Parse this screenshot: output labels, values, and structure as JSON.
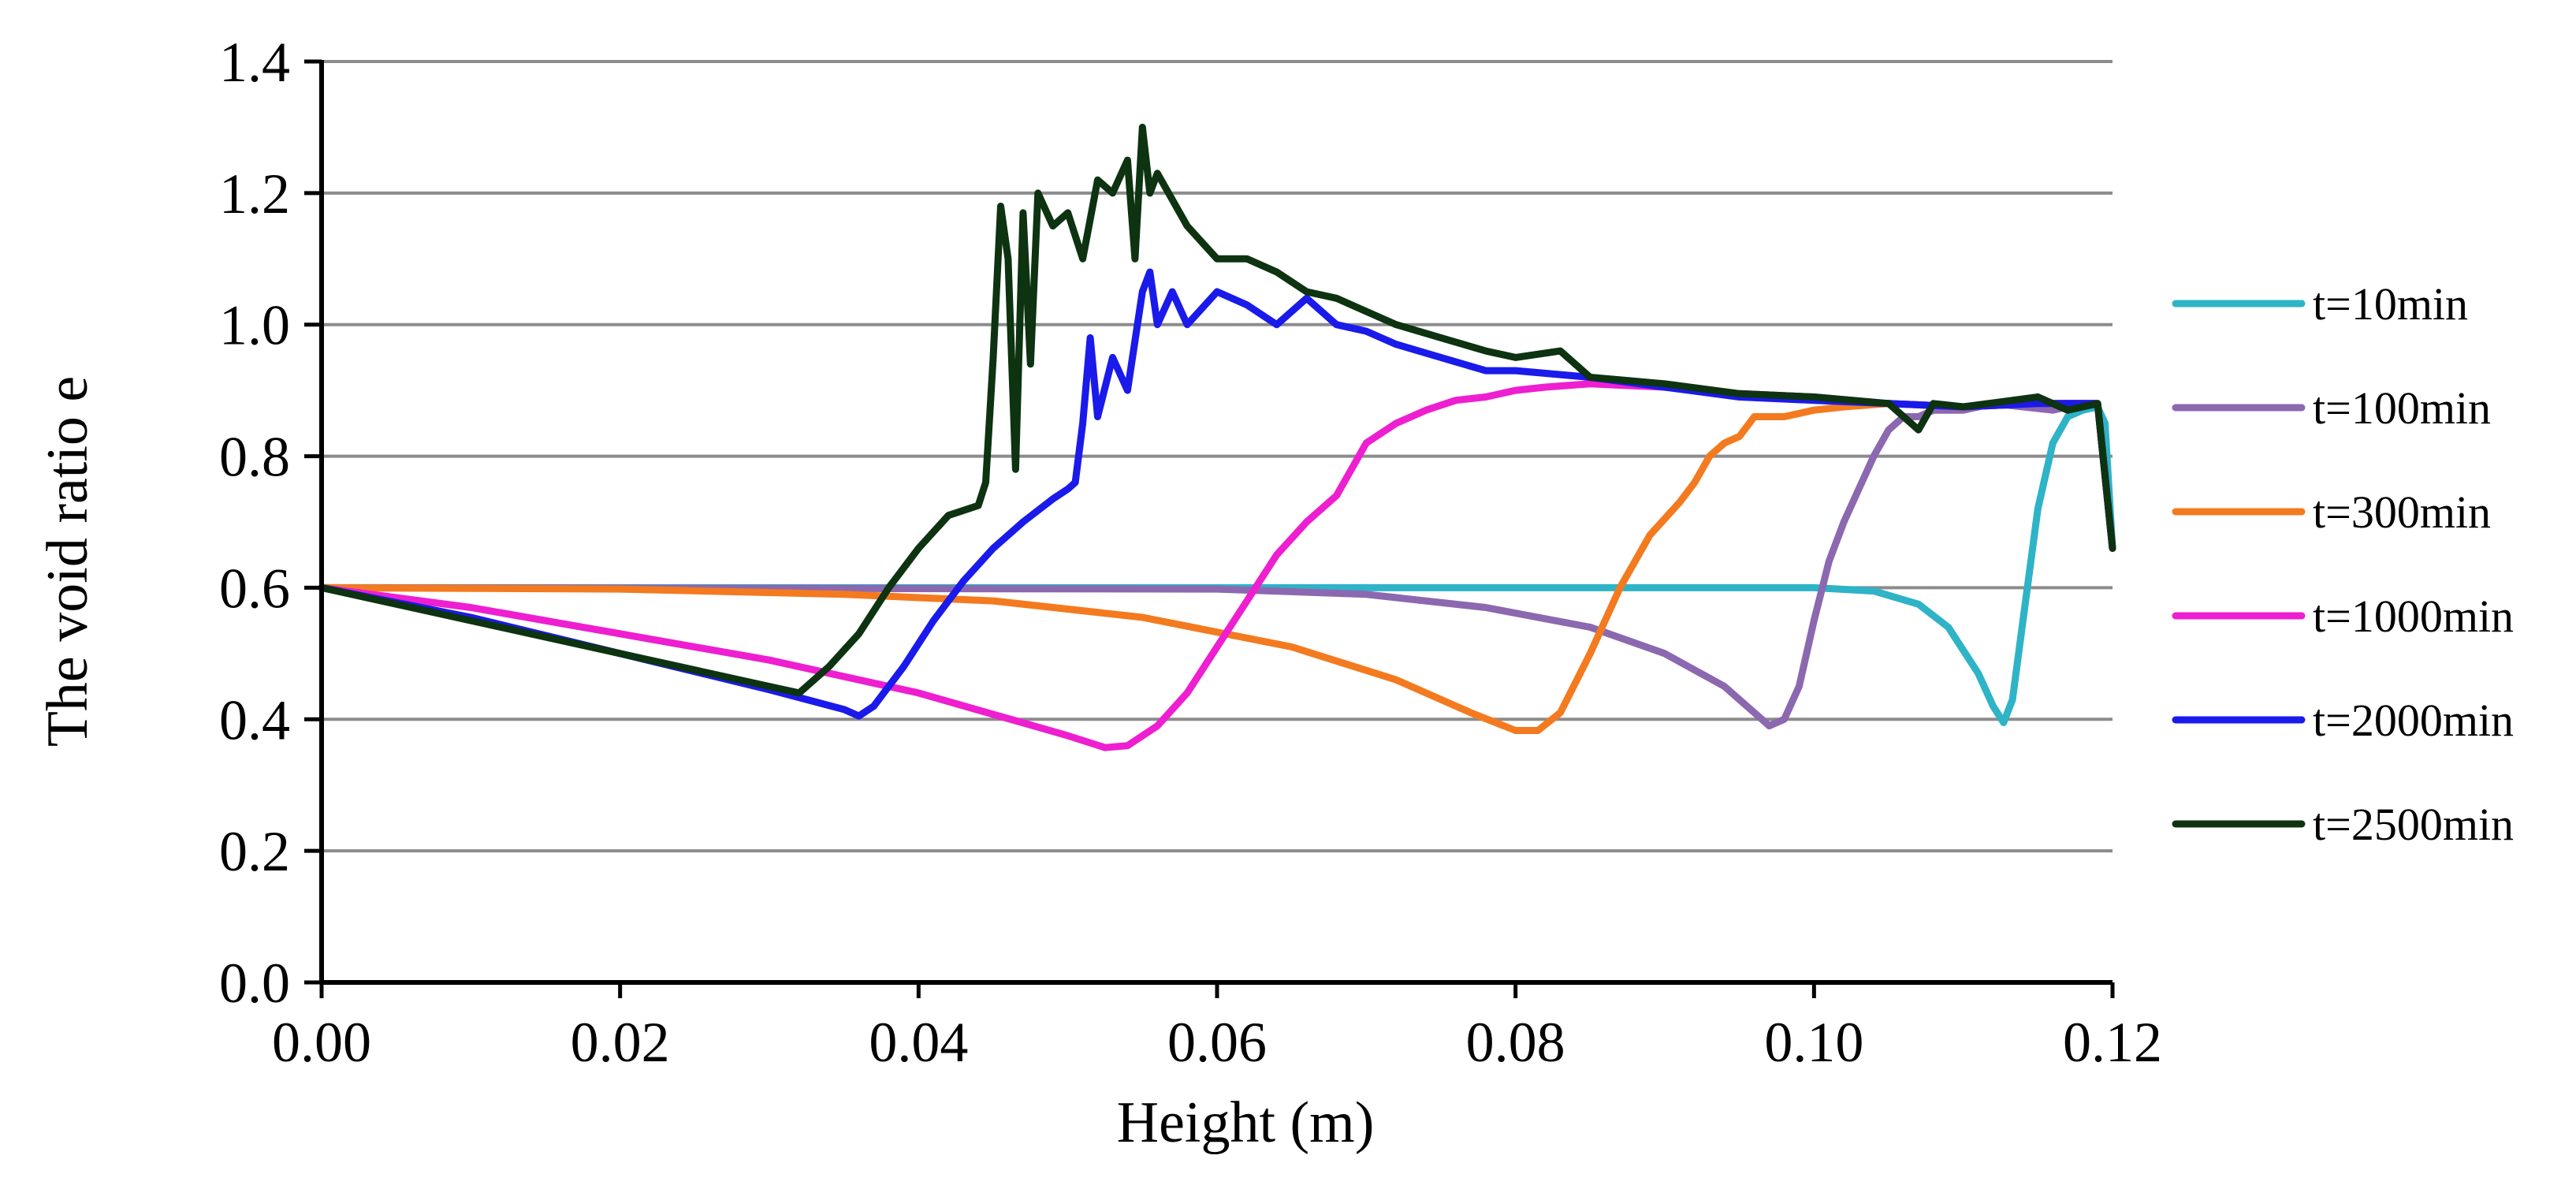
{
  "chart_data": {
    "type": "line",
    "title": "",
    "xlabel": "Height (m)",
    "ylabel": "The void ratio e",
    "xlim": [
      0,
      0.12
    ],
    "ylim": [
      0,
      1.4
    ],
    "x_ticks": [
      "0.00",
      "0.02",
      "0.04",
      "0.06",
      "0.08",
      "0.10",
      "0.12"
    ],
    "y_ticks": [
      "0.0",
      "0.2",
      "0.4",
      "0.6",
      "0.8",
      "1.0",
      "1.2",
      "1.4"
    ],
    "grid": "horizontal",
    "legend_position": "right",
    "series": [
      {
        "name": "t=10min",
        "color": "#2eb3c7",
        "points": [
          [
            0,
            0.6
          ],
          [
            0.09,
            0.6
          ],
          [
            0.1,
            0.6
          ],
          [
            0.104,
            0.595
          ],
          [
            0.107,
            0.575
          ],
          [
            0.109,
            0.54
          ],
          [
            0.111,
            0.47
          ],
          [
            0.112,
            0.42
          ],
          [
            0.1127,
            0.395
          ],
          [
            0.1133,
            0.43
          ],
          [
            0.114,
            0.55
          ],
          [
            0.115,
            0.72
          ],
          [
            0.116,
            0.82
          ],
          [
            0.117,
            0.86
          ],
          [
            0.118,
            0.87
          ],
          [
            0.119,
            0.875
          ],
          [
            0.1195,
            0.85
          ],
          [
            0.12,
            0.66
          ]
        ]
      },
      {
        "name": "t=100min",
        "color": "#8c68b0",
        "points": [
          [
            0,
            0.6
          ],
          [
            0.06,
            0.598
          ],
          [
            0.07,
            0.59
          ],
          [
            0.078,
            0.57
          ],
          [
            0.085,
            0.54
          ],
          [
            0.09,
            0.5
          ],
          [
            0.094,
            0.45
          ],
          [
            0.0965,
            0.4
          ],
          [
            0.097,
            0.39
          ],
          [
            0.098,
            0.4
          ],
          [
            0.099,
            0.45
          ],
          [
            0.1,
            0.55
          ],
          [
            0.101,
            0.64
          ],
          [
            0.102,
            0.7
          ],
          [
            0.103,
            0.75
          ],
          [
            0.104,
            0.8
          ],
          [
            0.105,
            0.84
          ],
          [
            0.106,
            0.86
          ],
          [
            0.107,
            0.86
          ],
          [
            0.108,
            0.87
          ],
          [
            0.11,
            0.87
          ],
          [
            0.112,
            0.88
          ],
          [
            0.114,
            0.875
          ],
          [
            0.116,
            0.87
          ],
          [
            0.118,
            0.88
          ],
          [
            0.119,
            0.88
          ],
          [
            0.12,
            0.66
          ]
        ]
      },
      {
        "name": "t=300min",
        "color": "#f47a1f",
        "points": [
          [
            0,
            0.6
          ],
          [
            0.02,
            0.598
          ],
          [
            0.035,
            0.59
          ],
          [
            0.045,
            0.58
          ],
          [
            0.055,
            0.555
          ],
          [
            0.065,
            0.51
          ],
          [
            0.072,
            0.46
          ],
          [
            0.077,
            0.41
          ],
          [
            0.08,
            0.383
          ],
          [
            0.0815,
            0.383
          ],
          [
            0.083,
            0.41
          ],
          [
            0.085,
            0.5
          ],
          [
            0.087,
            0.6
          ],
          [
            0.089,
            0.68
          ],
          [
            0.091,
            0.73
          ],
          [
            0.092,
            0.76
          ],
          [
            0.093,
            0.8
          ],
          [
            0.094,
            0.82
          ],
          [
            0.095,
            0.83
          ],
          [
            0.096,
            0.86
          ],
          [
            0.098,
            0.86
          ],
          [
            0.1,
            0.87
          ],
          [
            0.102,
            0.875
          ],
          [
            0.105,
            0.88
          ],
          [
            0.11,
            0.875
          ],
          [
            0.115,
            0.88
          ],
          [
            0.119,
            0.88
          ],
          [
            0.12,
            0.66
          ]
        ]
      },
      {
        "name": "t=1000min",
        "color": "#ee1fd0",
        "points": [
          [
            0,
            0.6
          ],
          [
            0.01,
            0.57
          ],
          [
            0.02,
            0.53
          ],
          [
            0.03,
            0.49
          ],
          [
            0.04,
            0.44
          ],
          [
            0.05,
            0.375
          ],
          [
            0.0525,
            0.357
          ],
          [
            0.054,
            0.36
          ],
          [
            0.056,
            0.39
          ],
          [
            0.058,
            0.44
          ],
          [
            0.06,
            0.51
          ],
          [
            0.062,
            0.58
          ],
          [
            0.064,
            0.65
          ],
          [
            0.066,
            0.7
          ],
          [
            0.068,
            0.74
          ],
          [
            0.069,
            0.78
          ],
          [
            0.07,
            0.82
          ],
          [
            0.072,
            0.85
          ],
          [
            0.074,
            0.87
          ],
          [
            0.076,
            0.885
          ],
          [
            0.078,
            0.89
          ],
          [
            0.08,
            0.9
          ],
          [
            0.082,
            0.905
          ],
          [
            0.085,
            0.91
          ],
          [
            0.09,
            0.905
          ],
          [
            0.095,
            0.895
          ],
          [
            0.1,
            0.89
          ],
          [
            0.105,
            0.88
          ],
          [
            0.11,
            0.875
          ],
          [
            0.115,
            0.88
          ],
          [
            0.119,
            0.88
          ],
          [
            0.12,
            0.66
          ]
        ]
      },
      {
        "name": "t=2000min",
        "color": "#1a1aeb",
        "points": [
          [
            0,
            0.6
          ],
          [
            0.01,
            0.555
          ],
          [
            0.02,
            0.5
          ],
          [
            0.03,
            0.445
          ],
          [
            0.035,
            0.415
          ],
          [
            0.036,
            0.405
          ],
          [
            0.037,
            0.42
          ],
          [
            0.039,
            0.48
          ],
          [
            0.041,
            0.55
          ],
          [
            0.043,
            0.61
          ],
          [
            0.045,
            0.66
          ],
          [
            0.047,
            0.7
          ],
          [
            0.049,
            0.735
          ],
          [
            0.05,
            0.75
          ],
          [
            0.0505,
            0.76
          ],
          [
            0.051,
            0.85
          ],
          [
            0.0515,
            0.98
          ],
          [
            0.052,
            0.86
          ],
          [
            0.053,
            0.95
          ],
          [
            0.054,
            0.9
          ],
          [
            0.055,
            1.05
          ],
          [
            0.0555,
            1.08
          ],
          [
            0.056,
            1.0
          ],
          [
            0.057,
            1.05
          ],
          [
            0.058,
            1.0
          ],
          [
            0.06,
            1.05
          ],
          [
            0.062,
            1.03
          ],
          [
            0.064,
            1.0
          ],
          [
            0.066,
            1.04
          ],
          [
            0.068,
            1.0
          ],
          [
            0.07,
            0.99
          ],
          [
            0.072,
            0.97
          ],
          [
            0.075,
            0.95
          ],
          [
            0.078,
            0.93
          ],
          [
            0.08,
            0.93
          ],
          [
            0.085,
            0.92
          ],
          [
            0.09,
            0.905
          ],
          [
            0.095,
            0.89
          ],
          [
            0.1,
            0.885
          ],
          [
            0.105,
            0.88
          ],
          [
            0.11,
            0.875
          ],
          [
            0.115,
            0.88
          ],
          [
            0.119,
            0.88
          ],
          [
            0.12,
            0.66
          ]
        ]
      },
      {
        "name": "t=2500min",
        "color": "#0d3311",
        "points": [
          [
            0,
            0.6
          ],
          [
            0.01,
            0.55
          ],
          [
            0.02,
            0.5
          ],
          [
            0.03,
            0.45
          ],
          [
            0.032,
            0.44
          ],
          [
            0.034,
            0.48
          ],
          [
            0.036,
            0.53
          ],
          [
            0.038,
            0.6
          ],
          [
            0.04,
            0.66
          ],
          [
            0.042,
            0.71
          ],
          [
            0.044,
            0.725
          ],
          [
            0.0445,
            0.76
          ],
          [
            0.045,
            0.95
          ],
          [
            0.0455,
            1.18
          ],
          [
            0.046,
            1.1
          ],
          [
            0.0465,
            0.78
          ],
          [
            0.047,
            1.17
          ],
          [
            0.0475,
            0.94
          ],
          [
            0.048,
            1.2
          ],
          [
            0.049,
            1.15
          ],
          [
            0.05,
            1.17
          ],
          [
            0.051,
            1.1
          ],
          [
            0.052,
            1.22
          ],
          [
            0.053,
            1.2
          ],
          [
            0.054,
            1.25
          ],
          [
            0.0545,
            1.1
          ],
          [
            0.055,
            1.3
          ],
          [
            0.0555,
            1.2
          ],
          [
            0.056,
            1.23
          ],
          [
            0.058,
            1.15
          ],
          [
            0.06,
            1.1
          ],
          [
            0.062,
            1.1
          ],
          [
            0.064,
            1.08
          ],
          [
            0.066,
            1.05
          ],
          [
            0.068,
            1.04
          ],
          [
            0.07,
            1.02
          ],
          [
            0.072,
            1.0
          ],
          [
            0.075,
            0.98
          ],
          [
            0.078,
            0.96
          ],
          [
            0.08,
            0.95
          ],
          [
            0.083,
            0.96
          ],
          [
            0.085,
            0.92
          ],
          [
            0.09,
            0.91
          ],
          [
            0.095,
            0.895
          ],
          [
            0.1,
            0.89
          ],
          [
            0.105,
            0.88
          ],
          [
            0.107,
            0.84
          ],
          [
            0.108,
            0.88
          ],
          [
            0.11,
            0.875
          ],
          [
            0.115,
            0.89
          ],
          [
            0.117,
            0.87
          ],
          [
            0.119,
            0.88
          ],
          [
            0.12,
            0.66
          ]
        ]
      }
    ]
  }
}
